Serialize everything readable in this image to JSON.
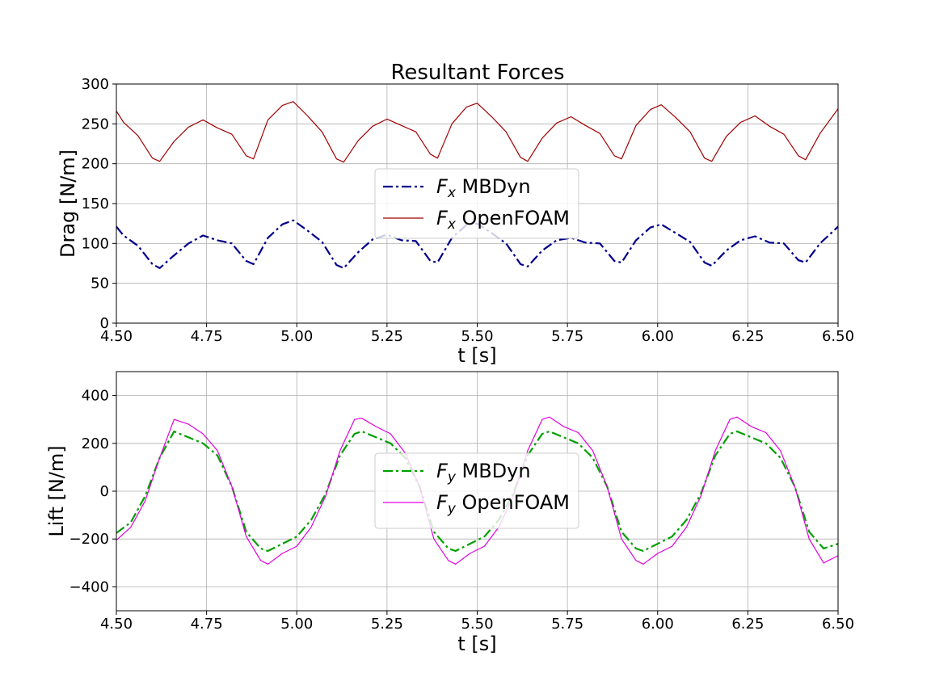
{
  "figure": {
    "title": "Resultant Forces"
  },
  "chart_data": [
    {
      "type": "line",
      "title": "Resultant Forces",
      "xlabel": "t [s]",
      "ylabel": "Drag [N/m]",
      "xlim": [
        4.5,
        6.5
      ],
      "ylim": [
        0,
        300
      ],
      "xticks": [
        4.5,
        4.75,
        5.0,
        5.25,
        5.5,
        5.75,
        6.0,
        6.25,
        6.5
      ],
      "xtick_labels": [
        "4.50",
        "4.75",
        "5.00",
        "5.25",
        "5.50",
        "5.75",
        "6.00",
        "6.25",
        "6.50"
      ],
      "yticks": [
        0,
        50,
        100,
        150,
        200,
        250,
        300
      ],
      "ytick_labels": [
        "0",
        "50",
        "100",
        "150",
        "200",
        "250",
        "300"
      ],
      "grid": true,
      "legend_position": "center",
      "series": [
        {
          "name": "Fx MBDyn",
          "legend_base": "F",
          "legend_sub": "x",
          "legend_rest": " MBDyn",
          "color": "#00008b",
          "style": "dashdot",
          "width": 2.2,
          "x": [
            4.5,
            4.52,
            4.56,
            4.6,
            4.62,
            4.66,
            4.7,
            4.74,
            4.78,
            4.82,
            4.86,
            4.88,
            4.92,
            4.96,
            4.99,
            5.03,
            5.07,
            5.11,
            5.13,
            5.17,
            5.21,
            5.25,
            5.29,
            5.33,
            5.37,
            5.39,
            5.43,
            5.47,
            5.5,
            5.54,
            5.58,
            5.62,
            5.64,
            5.68,
            5.72,
            5.76,
            5.8,
            5.84,
            5.88,
            5.9,
            5.94,
            5.98,
            6.01,
            6.05,
            6.09,
            6.13,
            6.15,
            6.19,
            6.23,
            6.27,
            6.31,
            6.35,
            6.39,
            6.41,
            6.45,
            6.5
          ],
          "y": [
            121,
            110,
            97,
            74,
            69,
            85,
            100,
            110,
            104,
            100,
            78,
            74,
            107,
            124,
            129,
            116,
            102,
            73,
            69,
            89,
            105,
            111,
            104,
            103,
            78,
            76,
            107,
            123,
            125,
            113,
            100,
            74,
            71,
            91,
            104,
            107,
            101,
            100,
            78,
            76,
            104,
            120,
            124,
            113,
            102,
            76,
            72,
            91,
            104,
            109,
            101,
            100,
            79,
            76,
            100,
            121
          ]
        },
        {
          "name": "Fx OpenFOAM",
          "legend_base": "F",
          "legend_sub": "x",
          "legend_rest": " OpenFOAM",
          "color": "#a00000",
          "style": "solid",
          "width": 1.2,
          "x": [
            4.5,
            4.52,
            4.56,
            4.6,
            4.62,
            4.66,
            4.7,
            4.74,
            4.78,
            4.82,
            4.86,
            4.88,
            4.92,
            4.96,
            4.99,
            5.03,
            5.07,
            5.11,
            5.13,
            5.17,
            5.21,
            5.25,
            5.29,
            5.33,
            5.37,
            5.39,
            5.43,
            5.47,
            5.5,
            5.54,
            5.58,
            5.62,
            5.64,
            5.68,
            5.72,
            5.76,
            5.8,
            5.84,
            5.88,
            5.9,
            5.94,
            5.98,
            6.01,
            6.05,
            6.09,
            6.13,
            6.15,
            6.19,
            6.23,
            6.27,
            6.31,
            6.35,
            6.39,
            6.41,
            6.45,
            6.5
          ],
          "y": [
            266,
            252,
            235,
            207,
            203,
            228,
            246,
            255,
            245,
            237,
            210,
            206,
            255,
            273,
            278,
            260,
            240,
            206,
            202,
            229,
            247,
            256,
            248,
            240,
            212,
            207,
            250,
            271,
            276,
            259,
            240,
            208,
            203,
            232,
            251,
            259,
            248,
            238,
            210,
            206,
            248,
            268,
            274,
            258,
            240,
            207,
            203,
            234,
            252,
            260,
            247,
            237,
            210,
            205,
            238,
            269
          ]
        }
      ]
    },
    {
      "type": "line",
      "xlabel": "t [s]",
      "ylabel": "Lift [N/m]",
      "xlim": [
        4.5,
        6.5
      ],
      "ylim": [
        -500,
        500
      ],
      "xticks": [
        4.5,
        4.75,
        5.0,
        5.25,
        5.5,
        5.75,
        6.0,
        6.25,
        6.5
      ],
      "xtick_labels": [
        "4.50",
        "4.75",
        "5.00",
        "5.25",
        "5.50",
        "5.75",
        "6.00",
        "6.25",
        "6.50"
      ],
      "yticks": [
        -400,
        -200,
        0,
        200,
        400
      ],
      "ytick_labels": [
        "−400",
        "−200",
        "0",
        "200",
        "400"
      ],
      "grid": true,
      "legend_position": "center",
      "series": [
        {
          "name": "Fy MBDyn",
          "legend_base": "F",
          "legend_sub": "y",
          "legend_rest": " MBDyn",
          "color": "#00a000",
          "style": "dashdot",
          "width": 2.2,
          "x": [
            4.5,
            4.54,
            4.58,
            4.62,
            4.66,
            4.7,
            4.74,
            4.78,
            4.82,
            4.86,
            4.9,
            4.92,
            4.96,
            5.0,
            5.04,
            5.08,
            5.12,
            5.16,
            5.18,
            5.22,
            5.26,
            5.3,
            5.34,
            5.38,
            5.42,
            5.44,
            5.48,
            5.52,
            5.56,
            5.6,
            5.64,
            5.68,
            5.7,
            5.74,
            5.78,
            5.82,
            5.86,
            5.9,
            5.94,
            5.96,
            6.0,
            6.04,
            6.08,
            6.12,
            6.16,
            6.2,
            6.22,
            6.26,
            6.3,
            6.34,
            6.38,
            6.42,
            6.46,
            6.5
          ],
          "y": [
            -175,
            -130,
            -20,
            140,
            250,
            225,
            200,
            150,
            20,
            -170,
            -240,
            -250,
            -220,
            -190,
            -120,
            -10,
            150,
            240,
            250,
            225,
            200,
            140,
            20,
            -170,
            -240,
            -250,
            -220,
            -190,
            -120,
            -10,
            150,
            240,
            250,
            225,
            200,
            140,
            20,
            -170,
            -240,
            -250,
            -220,
            -190,
            -120,
            -10,
            150,
            240,
            250,
            225,
            200,
            140,
            20,
            -170,
            -240,
            -220
          ]
        },
        {
          "name": "Fy OpenFOAM",
          "legend_base": "F",
          "legend_sub": "y",
          "legend_rest": " OpenFOAM",
          "color": "#e000e0",
          "style": "solid",
          "width": 1.2,
          "x": [
            4.5,
            4.54,
            4.58,
            4.62,
            4.66,
            4.7,
            4.74,
            4.78,
            4.82,
            4.86,
            4.9,
            4.92,
            4.96,
            5.0,
            5.04,
            5.08,
            5.12,
            5.16,
            5.18,
            5.22,
            5.26,
            5.3,
            5.34,
            5.38,
            5.42,
            5.44,
            5.48,
            5.52,
            5.56,
            5.6,
            5.64,
            5.68,
            5.7,
            5.74,
            5.78,
            5.82,
            5.86,
            5.9,
            5.94,
            5.96,
            6.0,
            6.04,
            6.08,
            6.12,
            6.16,
            6.2,
            6.22,
            6.26,
            6.3,
            6.34,
            6.38,
            6.42,
            6.46,
            6.5
          ],
          "y": [
            -205,
            -150,
            -40,
            140,
            300,
            280,
            240,
            170,
            20,
            -190,
            -290,
            -305,
            -260,
            -230,
            -150,
            -20,
            170,
            300,
            305,
            270,
            240,
            160,
            20,
            -200,
            -290,
            -305,
            -260,
            -230,
            -150,
            -20,
            170,
            300,
            310,
            270,
            245,
            170,
            20,
            -200,
            -290,
            -305,
            -260,
            -230,
            -150,
            -20,
            170,
            300,
            310,
            270,
            245,
            170,
            20,
            -200,
            -300,
            -270
          ]
        }
      ]
    }
  ]
}
